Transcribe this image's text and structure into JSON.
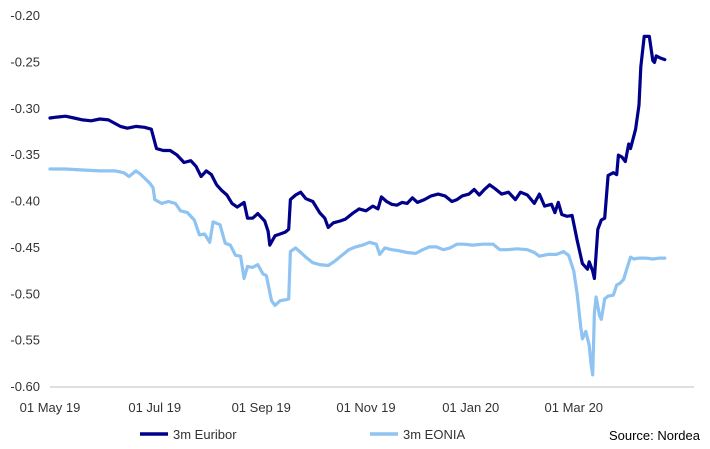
{
  "chart_data": {
    "type": "line",
    "title": "",
    "xlabel": "",
    "ylabel": "",
    "source": "Source: Nordea",
    "grid": false,
    "legend": "bottom",
    "x_ticks": [
      "01 May 19",
      "01 Jul 19",
      "01 Sep 19",
      "01 Nov 19",
      "01 Jan 20",
      "01 Mar 20"
    ],
    "x_tick_dates": [
      "2019-05-01",
      "2019-07-01",
      "2019-09-01",
      "2019-11-01",
      "2020-01-01",
      "2020-03-01"
    ],
    "xlim": [
      "2019-05-01",
      "2020-05-10"
    ],
    "y_ticks": [
      "-0.20",
      "-0.25",
      "-0.30",
      "-0.35",
      "-0.40",
      "-0.45",
      "-0.50",
      "-0.55",
      "-0.60"
    ],
    "ylim": [
      -0.6,
      -0.2
    ],
    "series": [
      {
        "name": "3m Euribor",
        "color": "#00008B",
        "points": [
          [
            "2019-05-01",
            -0.31
          ],
          [
            "2019-05-05",
            -0.309
          ],
          [
            "2019-05-10",
            -0.308
          ],
          [
            "2019-05-15",
            -0.31
          ],
          [
            "2019-05-20",
            -0.312
          ],
          [
            "2019-05-25",
            -0.313
          ],
          [
            "2019-05-30",
            -0.311
          ],
          [
            "2019-06-04",
            -0.312
          ],
          [
            "2019-06-08",
            -0.316
          ],
          [
            "2019-06-11",
            -0.319
          ],
          [
            "2019-06-15",
            -0.321
          ],
          [
            "2019-06-20",
            -0.319
          ],
          [
            "2019-06-25",
            -0.32
          ],
          [
            "2019-06-29",
            -0.322
          ],
          [
            "2019-07-02",
            -0.343
          ],
          [
            "2019-07-06",
            -0.345
          ],
          [
            "2019-07-10",
            -0.345
          ],
          [
            "2019-07-14",
            -0.35
          ],
          [
            "2019-07-18",
            -0.358
          ],
          [
            "2019-07-22",
            -0.356
          ],
          [
            "2019-07-25",
            -0.362
          ],
          [
            "2019-07-28",
            -0.373
          ],
          [
            "2019-07-31",
            -0.367
          ],
          [
            "2019-08-03",
            -0.371
          ],
          [
            "2019-08-06",
            -0.382
          ],
          [
            "2019-08-09",
            -0.388
          ],
          [
            "2019-08-12",
            -0.393
          ],
          [
            "2019-08-15",
            -0.402
          ],
          [
            "2019-08-18",
            -0.406
          ],
          [
            "2019-08-22",
            -0.401
          ],
          [
            "2019-08-24",
            -0.418
          ],
          [
            "2019-08-27",
            -0.418
          ],
          [
            "2019-08-30",
            -0.413
          ],
          [
            "2019-09-03",
            -0.421
          ],
          [
            "2019-09-05",
            -0.432
          ],
          [
            "2019-09-06",
            -0.447
          ],
          [
            "2019-09-09",
            -0.437
          ],
          [
            "2019-09-12",
            -0.435
          ],
          [
            "2019-09-15",
            -0.433
          ],
          [
            "2019-09-17",
            -0.43
          ],
          [
            "2019-09-18",
            -0.398
          ],
          [
            "2019-09-21",
            -0.393
          ],
          [
            "2019-09-24",
            -0.39
          ],
          [
            "2019-09-27",
            -0.397
          ],
          [
            "2019-10-01",
            -0.4
          ],
          [
            "2019-10-05",
            -0.412
          ],
          [
            "2019-10-08",
            -0.418
          ],
          [
            "2019-10-10",
            -0.428
          ],
          [
            "2019-10-13",
            -0.423
          ],
          [
            "2019-10-17",
            -0.421
          ],
          [
            "2019-10-20",
            -0.419
          ],
          [
            "2019-10-24",
            -0.413
          ],
          [
            "2019-10-28",
            -0.408
          ],
          [
            "2019-11-01",
            -0.41
          ],
          [
            "2019-11-05",
            -0.405
          ],
          [
            "2019-11-08",
            -0.408
          ],
          [
            "2019-11-10",
            -0.395
          ],
          [
            "2019-11-13",
            -0.4
          ],
          [
            "2019-11-16",
            -0.403
          ],
          [
            "2019-11-19",
            -0.404
          ],
          [
            "2019-11-22",
            -0.401
          ],
          [
            "2019-11-25",
            -0.402
          ],
          [
            "2019-11-28",
            -0.396
          ],
          [
            "2019-12-01",
            -0.401
          ],
          [
            "2019-12-05",
            -0.398
          ],
          [
            "2019-12-09",
            -0.394
          ],
          [
            "2019-12-13",
            -0.392
          ],
          [
            "2019-12-17",
            -0.394
          ],
          [
            "2019-12-21",
            -0.4
          ],
          [
            "2019-12-24",
            -0.398
          ],
          [
            "2019-12-27",
            -0.394
          ],
          [
            "2019-12-31",
            -0.392
          ],
          [
            "2020-01-03",
            -0.387
          ],
          [
            "2020-01-06",
            -0.393
          ],
          [
            "2020-01-09",
            -0.387
          ],
          [
            "2020-01-12",
            -0.382
          ],
          [
            "2020-01-15",
            -0.386
          ],
          [
            "2020-01-19",
            -0.392
          ],
          [
            "2020-01-23",
            -0.39
          ],
          [
            "2020-01-27",
            -0.398
          ],
          [
            "2020-01-30",
            -0.39
          ],
          [
            "2020-02-03",
            -0.393
          ],
          [
            "2020-02-07",
            -0.402
          ],
          [
            "2020-02-10",
            -0.392
          ],
          [
            "2020-02-13",
            -0.405
          ],
          [
            "2020-02-17",
            -0.403
          ],
          [
            "2020-02-19",
            -0.412
          ],
          [
            "2020-02-21",
            -0.401
          ],
          [
            "2020-02-23",
            -0.414
          ],
          [
            "2020-02-26",
            -0.416
          ],
          [
            "2020-02-29",
            -0.415
          ],
          [
            "2020-03-03",
            -0.442
          ],
          [
            "2020-03-06",
            -0.467
          ],
          [
            "2020-03-09",
            -0.473
          ],
          [
            "2020-03-10",
            -0.465
          ],
          [
            "2020-03-12",
            -0.475
          ],
          [
            "2020-03-13",
            -0.483
          ],
          [
            "2020-03-15",
            -0.43
          ],
          [
            "2020-03-17",
            -0.42
          ],
          [
            "2020-03-19",
            -0.418
          ],
          [
            "2020-03-21",
            -0.372
          ],
          [
            "2020-03-24",
            -0.369
          ],
          [
            "2020-03-26",
            -0.371
          ],
          [
            "2020-03-27",
            -0.35
          ],
          [
            "2020-03-29",
            -0.352
          ],
          [
            "2020-03-31",
            -0.357
          ],
          [
            "2020-04-02",
            -0.338
          ],
          [
            "2020-04-03",
            -0.343
          ],
          [
            "2020-04-06",
            -0.322
          ],
          [
            "2020-04-08",
            -0.296
          ],
          [
            "2020-04-09",
            -0.255
          ],
          [
            "2020-04-11",
            -0.222
          ],
          [
            "2020-04-14",
            -0.222
          ],
          [
            "2020-04-16",
            -0.248
          ],
          [
            "2020-04-17",
            -0.25
          ],
          [
            "2020-04-18",
            -0.243
          ],
          [
            "2020-04-20",
            -0.245
          ],
          [
            "2020-04-23",
            -0.247
          ]
        ]
      },
      {
        "name": "3m EONIA",
        "color": "#8EC3F2",
        "points": [
          [
            "2019-05-01",
            -0.365
          ],
          [
            "2019-05-10",
            -0.365
          ],
          [
            "2019-05-20",
            -0.366
          ],
          [
            "2019-05-30",
            -0.367
          ],
          [
            "2019-06-08",
            -0.367
          ],
          [
            "2019-06-13",
            -0.369
          ],
          [
            "2019-06-16",
            -0.373
          ],
          [
            "2019-06-20",
            -0.367
          ],
          [
            "2019-06-23",
            -0.371
          ],
          [
            "2019-06-28",
            -0.38
          ],
          [
            "2019-06-30",
            -0.385
          ],
          [
            "2019-07-01",
            -0.398
          ],
          [
            "2019-07-05",
            -0.402
          ],
          [
            "2019-07-09",
            -0.4
          ],
          [
            "2019-07-13",
            -0.402
          ],
          [
            "2019-07-16",
            -0.41
          ],
          [
            "2019-07-20",
            -0.412
          ],
          [
            "2019-07-24",
            -0.42
          ],
          [
            "2019-07-27",
            -0.436
          ],
          [
            "2019-07-30",
            -0.435
          ],
          [
            "2019-08-02",
            -0.444
          ],
          [
            "2019-08-04",
            -0.422
          ],
          [
            "2019-08-08",
            -0.425
          ],
          [
            "2019-08-11",
            -0.445
          ],
          [
            "2019-08-14",
            -0.447
          ],
          [
            "2019-08-17",
            -0.458
          ],
          [
            "2019-08-20",
            -0.459
          ],
          [
            "2019-08-22",
            -0.483
          ],
          [
            "2019-08-24",
            -0.47
          ],
          [
            "2019-08-27",
            -0.471
          ],
          [
            "2019-08-30",
            -0.468
          ],
          [
            "2019-09-02",
            -0.478
          ],
          [
            "2019-09-04",
            -0.48
          ],
          [
            "2019-09-07",
            -0.507
          ],
          [
            "2019-09-09",
            -0.512
          ],
          [
            "2019-09-12",
            -0.507
          ],
          [
            "2019-09-15",
            -0.506
          ],
          [
            "2019-09-17",
            -0.505
          ],
          [
            "2019-09-18",
            -0.454
          ],
          [
            "2019-09-21",
            -0.45
          ],
          [
            "2019-09-24",
            -0.455
          ],
          [
            "2019-09-27",
            -0.46
          ],
          [
            "2019-10-01",
            -0.466
          ],
          [
            "2019-10-05",
            -0.468
          ],
          [
            "2019-10-10",
            -0.469
          ],
          [
            "2019-10-14",
            -0.464
          ],
          [
            "2019-10-18",
            -0.458
          ],
          [
            "2019-10-22",
            -0.452
          ],
          [
            "2019-10-26",
            -0.449
          ],
          [
            "2019-10-30",
            -0.447
          ],
          [
            "2019-11-03",
            -0.444
          ],
          [
            "2019-11-07",
            -0.446
          ],
          [
            "2019-11-09",
            -0.457
          ],
          [
            "2019-11-12",
            -0.45
          ],
          [
            "2019-11-16",
            -0.452
          ],
          [
            "2019-11-20",
            -0.453
          ],
          [
            "2019-11-25",
            -0.455
          ],
          [
            "2019-11-30",
            -0.456
          ],
          [
            "2019-12-04",
            -0.452
          ],
          [
            "2019-12-08",
            -0.449
          ],
          [
            "2019-12-12",
            -0.449
          ],
          [
            "2019-12-16",
            -0.452
          ],
          [
            "2019-12-20",
            -0.45
          ],
          [
            "2019-12-24",
            -0.446
          ],
          [
            "2019-12-28",
            -0.446
          ],
          [
            "2020-01-02",
            -0.447
          ],
          [
            "2020-01-08",
            -0.446
          ],
          [
            "2020-01-14",
            -0.446
          ],
          [
            "2020-01-18",
            -0.452
          ],
          [
            "2020-01-22",
            -0.452
          ],
          [
            "2020-01-28",
            -0.451
          ],
          [
            "2020-02-03",
            -0.452
          ],
          [
            "2020-02-07",
            -0.455
          ],
          [
            "2020-02-10",
            -0.459
          ],
          [
            "2020-02-15",
            -0.457
          ],
          [
            "2020-02-20",
            -0.457
          ],
          [
            "2020-02-24",
            -0.454
          ],
          [
            "2020-02-27",
            -0.458
          ],
          [
            "2020-03-01",
            -0.475
          ],
          [
            "2020-03-03",
            -0.5
          ],
          [
            "2020-03-05",
            -0.535
          ],
          [
            "2020-03-06",
            -0.548
          ],
          [
            "2020-03-08",
            -0.54
          ],
          [
            "2020-03-10",
            -0.555
          ],
          [
            "2020-03-11",
            -0.575
          ],
          [
            "2020-03-12",
            -0.587
          ],
          [
            "2020-03-13",
            -0.52
          ],
          [
            "2020-03-14",
            -0.503
          ],
          [
            "2020-03-16",
            -0.523
          ],
          [
            "2020-03-17",
            -0.527
          ],
          [
            "2020-03-19",
            -0.505
          ],
          [
            "2020-03-21",
            -0.502
          ],
          [
            "2020-03-24",
            -0.501
          ],
          [
            "2020-03-26",
            -0.49
          ],
          [
            "2020-03-28",
            -0.488
          ],
          [
            "2020-03-30",
            -0.484
          ],
          [
            "2020-04-01",
            -0.472
          ],
          [
            "2020-04-03",
            -0.46
          ],
          [
            "2020-04-05",
            -0.462
          ],
          [
            "2020-04-08",
            -0.461
          ],
          [
            "2020-04-12",
            -0.461
          ],
          [
            "2020-04-16",
            -0.462
          ],
          [
            "2020-04-20",
            -0.461
          ],
          [
            "2020-04-23",
            -0.461
          ]
        ]
      }
    ]
  }
}
